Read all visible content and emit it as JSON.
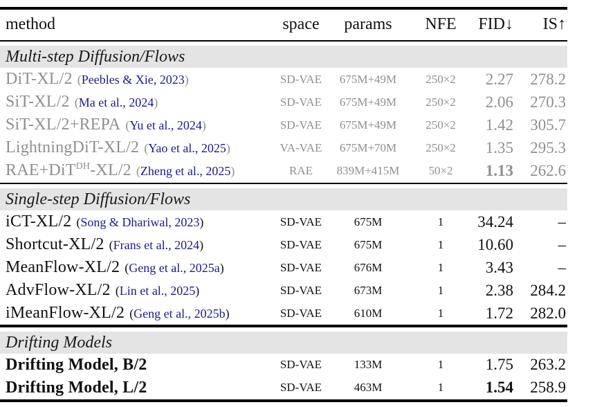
{
  "table": {
    "columns": [
      {
        "label": "method",
        "align": "left"
      },
      {
        "label": "space",
        "align": "center"
      },
      {
        "label": "params",
        "align": "center"
      },
      {
        "label": "NFE",
        "align": "center"
      },
      {
        "label": "FID↓",
        "align": "right"
      },
      {
        "label": "IS↑",
        "align": "right"
      }
    ],
    "sections": [
      {
        "title": "Multi-step Diffusion/Flows",
        "muted": true,
        "rule_after": "mid",
        "rows": [
          {
            "method": "DiT-XL/2",
            "cite": "Peebles & Xie, 2023",
            "space": "SD-VAE",
            "params": "675M+49M",
            "nfe": "250×2",
            "fid": "2.27",
            "is": "278.2"
          },
          {
            "method": "SiT-XL/2",
            "cite": "Ma et al., 2024",
            "space": "SD-VAE",
            "params": "675M+49M",
            "nfe": "250×2",
            "fid": "2.06",
            "is": "270.3"
          },
          {
            "method": "SiT-XL/2+REPA",
            "cite": "Yu et al., 2024",
            "space": "SD-VAE",
            "params": "675M+49M",
            "nfe": "250×2",
            "fid": "1.42",
            "is": "305.7"
          },
          {
            "method": "LightningDiT-XL/2",
            "cite": "Yao et al., 2025",
            "space": "VA-VAE",
            "params": "675M+70M",
            "nfe": "250×2",
            "fid": "1.35",
            "is": "295.3"
          },
          {
            "method": "RAE+DiT",
            "method_sup": "DH",
            "method_suffix": "-XL/2",
            "cite": "Zheng et al., 2025",
            "space": "RAE",
            "params": "839M+415M",
            "nfe": "50×2",
            "fid": "1.13",
            "fid_bold": true,
            "is": "262.6"
          }
        ]
      },
      {
        "title": "Single-step Diffusion/Flows",
        "muted": false,
        "rule_after": "heavy",
        "rows": [
          {
            "method": "iCT-XL/2",
            "cite": "Song & Dhariwal, 2023",
            "space": "SD-VAE",
            "params": "675M",
            "nfe": "1",
            "fid": "34.24",
            "is": "–"
          },
          {
            "method": "Shortcut-XL/2",
            "cite": "Frans et al., 2024",
            "space": "SD-VAE",
            "params": "675M",
            "nfe": "1",
            "fid": "10.60",
            "is": "–"
          },
          {
            "method": "MeanFlow-XL/2",
            "cite": "Geng et al., 2025a",
            "space": "SD-VAE",
            "params": "676M",
            "nfe": "1",
            "fid": "3.43",
            "is": "–"
          },
          {
            "method": "AdvFlow-XL/2",
            "cite": "Lin et al., 2025",
            "space": "SD-VAE",
            "params": "673M",
            "nfe": "1",
            "fid": "2.38",
            "is": "284.2"
          },
          {
            "method": "iMeanFlow-XL/2",
            "cite": "Geng et al., 2025b",
            "space": "SD-VAE",
            "params": "610M",
            "nfe": "1",
            "fid": "1.72",
            "is": "282.0"
          }
        ]
      },
      {
        "title": "Drifting Models",
        "muted": false,
        "rule_after": "bottom",
        "rows": [
          {
            "method": "Drifting Model, B/2",
            "method_bold": true,
            "space": "SD-VAE",
            "params": "133M",
            "nfe": "1",
            "fid": "1.75",
            "is": "263.2"
          },
          {
            "method": "Drifting Model, L/2",
            "method_bold": true,
            "space": "SD-VAE",
            "params": "463M",
            "nfe": "1",
            "fid": "1.54",
            "fid_bold": true,
            "is": "258.9"
          }
        ]
      }
    ]
  },
  "colors": {
    "citation": "#1b1b8a",
    "muted_text": "#8f8f8f",
    "banner_background": "#e4e4e4",
    "rule": "#000000"
  }
}
